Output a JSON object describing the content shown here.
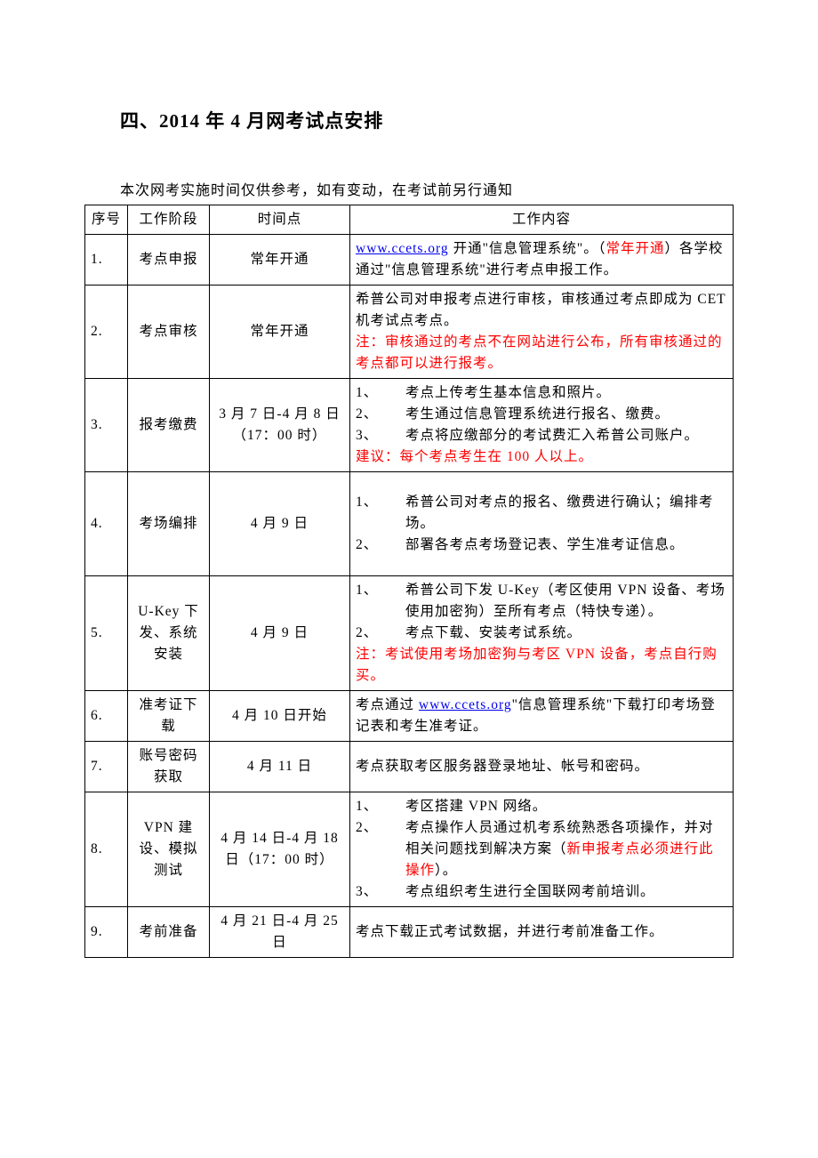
{
  "colors": {
    "text": "#000000",
    "link": "#0000ee",
    "highlight": "#ff0000",
    "background": "#ffffff",
    "border": "#000000"
  },
  "typography": {
    "title_fontsize_pt": 16,
    "body_fontsize_pt": 12,
    "font_family": "SimSun"
  },
  "title": "四、2014 年 4 月网考试点安排",
  "intro_note": "本次网考实施时间仅供参考，如有变动，在考试前另行通知",
  "headers": {
    "seq": "序号",
    "phase": "工作阶段",
    "time": "时间点",
    "content": "工作内容"
  },
  "rows": [
    {
      "seq": "1.",
      "phase": "考点申报",
      "time": "常年开通",
      "content": {
        "type": "para",
        "segments": [
          {
            "kind": "link",
            "text": "www.ccets.org"
          },
          {
            "kind": "plain",
            "text": " 开通\"信息管理系统\"。（"
          },
          {
            "kind": "red",
            "text": "常年开通"
          },
          {
            "kind": "plain",
            "text": "）各学校通过\"信息管理系统\"进行考点申报工作。"
          }
        ]
      }
    },
    {
      "seq": "2.",
      "phase": "考点审核",
      "time": "常年开通",
      "content": {
        "type": "para",
        "segments": [
          {
            "kind": "plain",
            "text": "希普公司对申报考点进行审核，审核通过考点即成为 CET 机考试点考点。"
          },
          {
            "kind": "br"
          },
          {
            "kind": "red",
            "text": "注：审核通过的考点不在网站进行公布，所有审核通过的考点都可以进行报考。"
          }
        ]
      }
    },
    {
      "seq": "3.",
      "phase": "报考缴费",
      "time": "3 月 7 日-4 月 8 日（17：00 时）",
      "content": {
        "type": "olist",
        "items": [
          "考点上传考生基本信息和照片。",
          "考生通过信息管理系统进行报名、缴费。",
          "考点将应缴部分的考试费汇入希普公司账户。"
        ],
        "after": [
          {
            "kind": "red",
            "text": "建议：每个考点考生在 100 人以上。"
          }
        ]
      }
    },
    {
      "seq": "4.",
      "phase": "考场编排",
      "time": "4 月 9 日",
      "tall": true,
      "content": {
        "type": "olist",
        "items": [
          "希普公司对考点的报名、缴费进行确认；编排考场。",
          "部署各考点考场登记表、学生准考证信息。"
        ]
      }
    },
    {
      "seq": "5.",
      "phase": "U-Key 下发、系统安装",
      "time": "4 月 9 日",
      "content": {
        "type": "olist",
        "items": [
          "希普公司下发 U-Key（考区使用 VPN 设备、考场使用加密狗）至所有考点（特快专递）。",
          "考点下载、安装考试系统。"
        ],
        "after": [
          {
            "kind": "red",
            "text": "注：考试使用考场加密狗与考区 VPN 设备，考点自行购买。"
          }
        ]
      }
    },
    {
      "seq": "6.",
      "phase": "准考证下载",
      "time": "4 月 10 日开始",
      "content": {
        "type": "para",
        "segments": [
          {
            "kind": "plain",
            "text": "考点通过 "
          },
          {
            "kind": "link",
            "text": "www.ccets.org"
          },
          {
            "kind": "plain",
            "text": "\"信息管理系统\"下载打印考场登记表和考生准考证。"
          }
        ]
      }
    },
    {
      "seq": "7.",
      "phase": "账号密码获取",
      "time": "4 月 11 日",
      "content": {
        "type": "para",
        "segments": [
          {
            "kind": "plain",
            "text": "考点获取考区服务器登录地址、帐号和密码。"
          }
        ]
      }
    },
    {
      "seq": "8.",
      "phase": "VPN 建设、模拟测试",
      "time": "4 月 14 日-4 月 18 日（17：00 时）",
      "content": {
        "type": "olist",
        "items_rich": [
          [
            {
              "kind": "plain",
              "text": "考区搭建 VPN 网络。"
            }
          ],
          [
            {
              "kind": "plain",
              "text": "考点操作人员通过机考系统熟悉各项操作，并对相关问题找到解决方案（"
            },
            {
              "kind": "red",
              "text": "新申报考点必须进行此操作"
            },
            {
              "kind": "plain",
              "text": "）。"
            }
          ],
          [
            {
              "kind": "plain",
              "text": "考点组织考生进行全国联网考前培训。"
            }
          ]
        ]
      }
    },
    {
      "seq": "9.",
      "phase": "考前准备",
      "time": "4 月 21 日-4 月 25 日",
      "content": {
        "type": "para",
        "segments": [
          {
            "kind": "plain",
            "text": "考点下载正式考试数据，并进行考前准备工作。"
          }
        ]
      }
    }
  ]
}
